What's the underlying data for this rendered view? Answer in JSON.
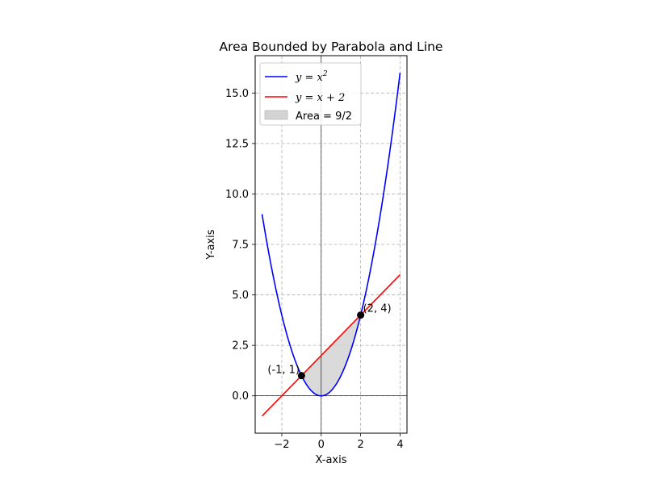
{
  "chart_data": {
    "type": "line",
    "title": "Area Bounded by Parabola and Line",
    "xlabel": "X-axis",
    "ylabel": "Y-axis",
    "xlim": [
      -3.35,
      4.35
    ],
    "ylim": [
      -1.85,
      16.85
    ],
    "x_ticks": [
      -2,
      0,
      2,
      4
    ],
    "x_tick_labels": [
      "−2",
      "0",
      "2",
      "4"
    ],
    "y_ticks": [
      0.0,
      2.5,
      5.0,
      7.5,
      10.0,
      12.5,
      15.0
    ],
    "y_tick_labels": [
      "0.0",
      "2.5",
      "5.0",
      "7.5",
      "10.0",
      "12.5",
      "15.0"
    ],
    "grid": true,
    "grid_style": "dashed",
    "legend_position": "upper-left",
    "series": [
      {
        "name": "y = x^2",
        "legend_parts": {
          "prefix": "y = x",
          "superscript": "2"
        },
        "color": "#0000ff",
        "x": [
          -3,
          -2.5,
          -2,
          -1.5,
          -1,
          -0.5,
          0,
          0.5,
          1,
          1.5,
          2,
          2.5,
          3,
          3.5,
          4
        ],
        "y": [
          9,
          6.25,
          4,
          2.25,
          1,
          0.25,
          0,
          0.25,
          1,
          2.25,
          4,
          6.25,
          9,
          12.25,
          16
        ]
      },
      {
        "name": "y = x + 2",
        "legend_parts": {
          "prefix": "y = x + 2"
        },
        "color": "#ff0000",
        "x": [
          -3,
          4
        ],
        "y": [
          -1,
          6
        ]
      }
    ],
    "filled_area": {
      "label": "Area = 9/2",
      "x_range": [
        -1,
        2
      ],
      "upper": "y = x + 2",
      "lower": "y = x^2",
      "color": "#d3d3d3"
    },
    "points": [
      {
        "x": -1,
        "y": 1,
        "label": "(-1, 1)"
      },
      {
        "x": 2,
        "y": 4,
        "label": "(2, 4)"
      }
    ],
    "reference_lines": {
      "x": 0,
      "y": 0,
      "color": "#000000"
    }
  }
}
